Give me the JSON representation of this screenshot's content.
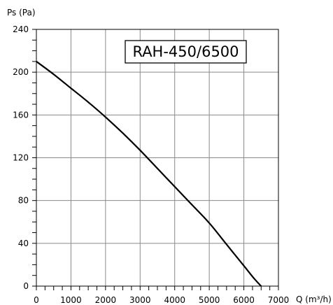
{
  "chart_data": {
    "type": "line",
    "title": "RAH-450/6500",
    "xlabel": "Q (m³/h)",
    "ylabel": "Ps (Pa)",
    "xlim": [
      0,
      7000
    ],
    "ylim": [
      0,
      240
    ],
    "x_ticks": [
      0,
      1000,
      2000,
      3000,
      4000,
      5000,
      6000,
      7000
    ],
    "x_tick_labels": [
      "0",
      "1000",
      "2000",
      "3000",
      "4000",
      "5000",
      "6000",
      "7000"
    ],
    "y_ticks": [
      0,
      40,
      80,
      120,
      160,
      200,
      240
    ],
    "y_tick_labels": [
      "0",
      "40",
      "80",
      "120",
      "160",
      "200",
      "240"
    ],
    "grid": true,
    "series": [
      {
        "x": [
          0,
          500,
          1000,
          1500,
          2000,
          2500,
          3000,
          3500,
          4000,
          4500,
          5000,
          5500,
          6000,
          6300,
          6500
        ],
        "y": [
          210,
          198,
          185,
          172,
          158,
          143,
          127,
          110,
          93,
          76,
          59,
          39,
          19,
          7,
          0
        ]
      }
    ]
  }
}
